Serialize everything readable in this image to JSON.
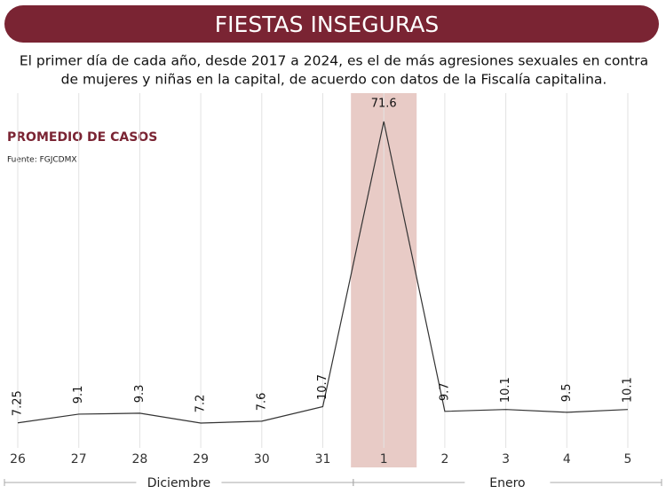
{
  "chart_data": {
    "type": "line",
    "title": "FIESTAS INSEGURAS",
    "subtitle": [
      "El primer día de cada año, desde 2017 a 2024, es el de más agresiones sexuales en contra",
      "de mujeres y niñas en la capital, de acuerdo con datos de la Fiscalía capitalina."
    ],
    "label": "PROMEDIO DE CASOS",
    "source": "Fuente: FGJCDMX",
    "categories": [
      "26",
      "27",
      "28",
      "29",
      "30",
      "31",
      "1",
      "2",
      "3",
      "4",
      "5"
    ],
    "values": [
      7.25,
      9.1,
      9.3,
      7.2,
      7.6,
      10.7,
      71.6,
      9.7,
      10.1,
      9.5,
      10.1
    ],
    "color": "#333333",
    "highlight": "1",
    "highlight_color": "#e8cbc6",
    "accent_color": "#7a2433",
    "groups": [
      {
        "name": "Diciembre",
        "first": "26",
        "last": "31"
      },
      {
        "name": "Enero",
        "first": "1",
        "last": "5"
      }
    ],
    "grid": true
  }
}
